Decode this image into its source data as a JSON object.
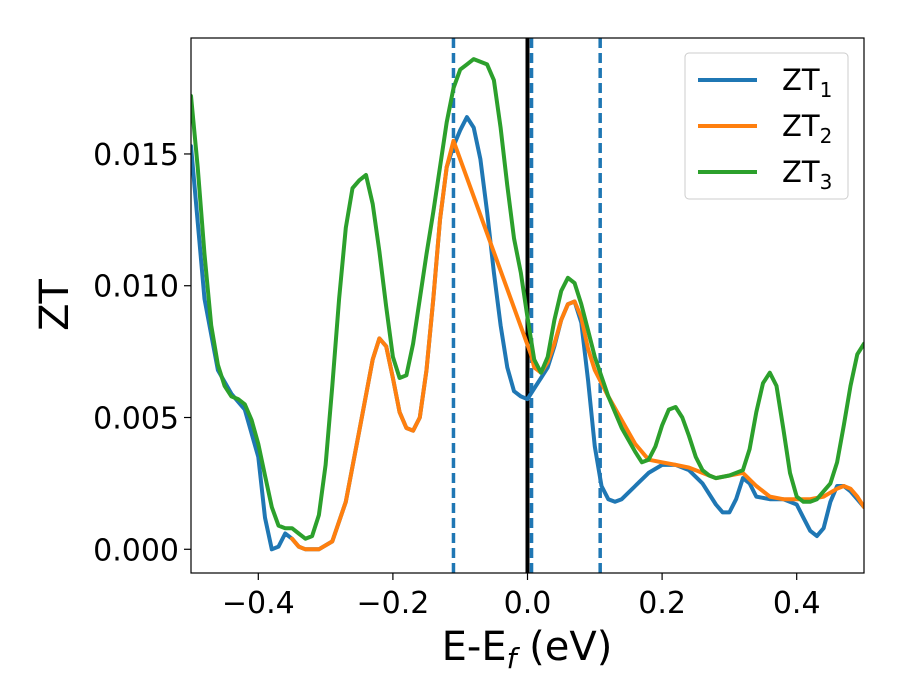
{
  "chart_data": {
    "type": "line",
    "title": "",
    "xlabel": {
      "main": "E-E",
      "sub": "f",
      "suffix": " (eV)"
    },
    "ylabel": "ZT",
    "xlim": [
      -0.5,
      0.5
    ],
    "ylim": [
      -0.0009,
      0.0194
    ],
    "x_ticks": [
      -0.4,
      -0.2,
      0.0,
      0.2,
      0.4
    ],
    "x_tick_labels": [
      "−0.4",
      "−0.2",
      "0.0",
      "0.2",
      "0.4"
    ],
    "y_ticks": [
      0.0,
      0.005,
      0.01,
      0.015
    ],
    "y_tick_labels": [
      "0.000",
      "0.005",
      "0.010",
      "0.015"
    ],
    "grid": false,
    "legend_position": "top-right",
    "vertical_lines": [
      {
        "x": -0.11,
        "style": "dashed",
        "color": "#1f77b4"
      },
      {
        "x": 0.0,
        "style": "solid",
        "color": "#000000"
      },
      {
        "x": 0.006,
        "style": "dashed",
        "color": "#1f77b4"
      },
      {
        "x": 0.108,
        "style": "dashed",
        "color": "#1f77b4"
      }
    ],
    "series": [
      {
        "name": "ZT",
        "sub": "1",
        "color": "#1f77b4",
        "points": [
          [
            -0.5,
            0.0153
          ],
          [
            -0.48,
            0.0095
          ],
          [
            -0.46,
            0.0068
          ],
          [
            -0.44,
            0.0059
          ],
          [
            -0.42,
            0.0053
          ],
          [
            -0.4,
            0.0035
          ],
          [
            -0.39,
            0.0012
          ],
          [
            -0.38,
            0.0
          ],
          [
            -0.37,
            0.0001
          ],
          [
            -0.36,
            0.0006
          ],
          [
            -0.35,
            0.0004
          ],
          [
            -0.34,
            0.0001
          ],
          [
            -0.33,
            0.0
          ],
          [
            -0.31,
            0.0
          ],
          [
            -0.29,
            0.0003
          ],
          [
            -0.27,
            0.0018
          ],
          [
            -0.25,
            0.0045
          ],
          [
            -0.23,
            0.0072
          ],
          [
            -0.22,
            0.008
          ],
          [
            -0.21,
            0.0077
          ],
          [
            -0.2,
            0.0065
          ],
          [
            -0.19,
            0.0052
          ],
          [
            -0.18,
            0.0046
          ],
          [
            -0.17,
            0.0045
          ],
          [
            -0.16,
            0.005
          ],
          [
            -0.15,
            0.0068
          ],
          [
            -0.14,
            0.0095
          ],
          [
            -0.13,
            0.0125
          ],
          [
            -0.12,
            0.0145
          ],
          [
            -0.11,
            0.0153
          ],
          [
            -0.1,
            0.0159
          ],
          [
            -0.09,
            0.0164
          ],
          [
            -0.08,
            0.016
          ],
          [
            -0.07,
            0.0148
          ],
          [
            -0.06,
            0.0128
          ],
          [
            -0.05,
            0.0105
          ],
          [
            -0.04,
            0.0085
          ],
          [
            -0.03,
            0.0069
          ],
          [
            -0.02,
            0.006
          ],
          [
            -0.01,
            0.0058
          ],
          [
            0.0,
            0.0057
          ],
          [
            0.01,
            0.0061
          ],
          [
            0.02,
            0.0065
          ],
          [
            0.03,
            0.0069
          ],
          [
            0.04,
            0.0077
          ],
          [
            0.05,
            0.0087
          ],
          [
            0.06,
            0.0093
          ],
          [
            0.07,
            0.0094
          ],
          [
            0.08,
            0.0086
          ],
          [
            0.09,
            0.0064
          ],
          [
            0.1,
            0.0039
          ],
          [
            0.11,
            0.0024
          ],
          [
            0.12,
            0.0019
          ],
          [
            0.13,
            0.0018
          ],
          [
            0.14,
            0.0019
          ],
          [
            0.16,
            0.0024
          ],
          [
            0.18,
            0.0029
          ],
          [
            0.2,
            0.0032
          ],
          [
            0.22,
            0.0032
          ],
          [
            0.24,
            0.003
          ],
          [
            0.26,
            0.0025
          ],
          [
            0.28,
            0.0017
          ],
          [
            0.29,
            0.0014
          ],
          [
            0.3,
            0.0014
          ],
          [
            0.31,
            0.0019
          ],
          [
            0.32,
            0.0027
          ],
          [
            0.33,
            0.0025
          ],
          [
            0.34,
            0.002
          ],
          [
            0.36,
            0.0019
          ],
          [
            0.38,
            0.0019
          ],
          [
            0.4,
            0.0017
          ],
          [
            0.41,
            0.0012
          ],
          [
            0.42,
            0.0007
          ],
          [
            0.43,
            0.0005
          ],
          [
            0.44,
            0.0008
          ],
          [
            0.45,
            0.0018
          ],
          [
            0.46,
            0.0024
          ],
          [
            0.47,
            0.0024
          ],
          [
            0.48,
            0.0022
          ],
          [
            0.49,
            0.0019
          ],
          [
            0.5,
            0.0016
          ]
        ]
      },
      {
        "name": "ZT",
        "sub": "2",
        "color": "#ff7f0e",
        "points": [
          [
            -0.35,
            0.0004
          ],
          [
            -0.34,
            0.0001
          ],
          [
            -0.33,
            0.0
          ],
          [
            -0.31,
            0.0
          ],
          [
            -0.29,
            0.0003
          ],
          [
            -0.27,
            0.0018
          ],
          [
            -0.25,
            0.0045
          ],
          [
            -0.23,
            0.0072
          ],
          [
            -0.22,
            0.008
          ],
          [
            -0.21,
            0.0077
          ],
          [
            -0.2,
            0.0065
          ],
          [
            -0.19,
            0.0052
          ],
          [
            -0.18,
            0.0046
          ],
          [
            -0.17,
            0.0045
          ],
          [
            -0.16,
            0.005
          ],
          [
            -0.15,
            0.0068
          ],
          [
            -0.14,
            0.0095
          ],
          [
            -0.13,
            0.0125
          ],
          [
            -0.12,
            0.0145
          ],
          [
            -0.11,
            0.0155
          ],
          [
            0.005,
            0.0074
          ],
          [
            0.01,
            0.0069
          ],
          [
            0.02,
            0.0067
          ],
          [
            0.03,
            0.0071
          ],
          [
            0.04,
            0.0078
          ],
          [
            0.05,
            0.0087
          ],
          [
            0.06,
            0.0093
          ],
          [
            0.07,
            0.0094
          ],
          [
            0.08,
            0.0088
          ],
          [
            0.09,
            0.0076
          ],
          [
            0.1,
            0.0068
          ],
          [
            0.12,
            0.0058
          ],
          [
            0.14,
            0.0049
          ],
          [
            0.16,
            0.004
          ],
          [
            0.18,
            0.0034
          ],
          [
            0.2,
            0.0033
          ],
          [
            0.22,
            0.0032
          ],
          [
            0.24,
            0.0031
          ],
          [
            0.26,
            0.0029
          ],
          [
            0.28,
            0.0027
          ],
          [
            0.3,
            0.0028
          ],
          [
            0.32,
            0.0029
          ],
          [
            0.34,
            0.0024
          ],
          [
            0.36,
            0.002
          ],
          [
            0.38,
            0.0019
          ],
          [
            0.4,
            0.0019
          ],
          [
            0.42,
            0.0019
          ],
          [
            0.44,
            0.002
          ],
          [
            0.46,
            0.0023
          ],
          [
            0.47,
            0.0024
          ],
          [
            0.48,
            0.0023
          ],
          [
            0.49,
            0.002
          ],
          [
            0.5,
            0.0016
          ]
        ]
      },
      {
        "name": "ZT",
        "sub": "3",
        "color": "#2ca02c",
        "points": [
          [
            -0.5,
            0.0172
          ],
          [
            -0.49,
            0.0145
          ],
          [
            -0.48,
            0.0112
          ],
          [
            -0.47,
            0.0085
          ],
          [
            -0.46,
            0.007
          ],
          [
            -0.45,
            0.0062
          ],
          [
            -0.44,
            0.0058
          ],
          [
            -0.43,
            0.0057
          ],
          [
            -0.42,
            0.0055
          ],
          [
            -0.41,
            0.0049
          ],
          [
            -0.4,
            0.004
          ],
          [
            -0.39,
            0.0028
          ],
          [
            -0.38,
            0.0016
          ],
          [
            -0.37,
            0.0009
          ],
          [
            -0.36,
            0.0008
          ],
          [
            -0.35,
            0.0008
          ],
          [
            -0.34,
            0.0006
          ],
          [
            -0.33,
            0.0004
          ],
          [
            -0.32,
            0.0005
          ],
          [
            -0.31,
            0.0013
          ],
          [
            -0.3,
            0.0032
          ],
          [
            -0.29,
            0.0062
          ],
          [
            -0.28,
            0.0095
          ],
          [
            -0.27,
            0.0122
          ],
          [
            -0.26,
            0.0137
          ],
          [
            -0.25,
            0.014
          ],
          [
            -0.24,
            0.0142
          ],
          [
            -0.23,
            0.0131
          ],
          [
            -0.22,
            0.0113
          ],
          [
            -0.21,
            0.0092
          ],
          [
            -0.2,
            0.0073
          ],
          [
            -0.19,
            0.0065
          ],
          [
            -0.18,
            0.0066
          ],
          [
            -0.17,
            0.0078
          ],
          [
            -0.16,
            0.0095
          ],
          [
            -0.15,
            0.0112
          ],
          [
            -0.14,
            0.0128
          ],
          [
            -0.13,
            0.0145
          ],
          [
            -0.12,
            0.0162
          ],
          [
            -0.11,
            0.0175
          ],
          [
            -0.1,
            0.0182
          ],
          [
            -0.09,
            0.0184
          ],
          [
            -0.08,
            0.0186
          ],
          [
            -0.07,
            0.0185
          ],
          [
            -0.06,
            0.0184
          ],
          [
            -0.05,
            0.0178
          ],
          [
            -0.04,
            0.016
          ],
          [
            -0.03,
            0.0138
          ],
          [
            -0.02,
            0.0118
          ],
          [
            -0.01,
            0.0105
          ],
          [
            0.0,
            0.0088
          ],
          [
            0.01,
            0.0072
          ],
          [
            0.02,
            0.0067
          ],
          [
            0.03,
            0.0073
          ],
          [
            0.04,
            0.0087
          ],
          [
            0.05,
            0.0098
          ],
          [
            0.06,
            0.0103
          ],
          [
            0.07,
            0.0101
          ],
          [
            0.08,
            0.0093
          ],
          [
            0.09,
            0.0083
          ],
          [
            0.1,
            0.0073
          ],
          [
            0.12,
            0.0058
          ],
          [
            0.14,
            0.0046
          ],
          [
            0.16,
            0.0037
          ],
          [
            0.17,
            0.0033
          ],
          [
            0.18,
            0.0034
          ],
          [
            0.19,
            0.0039
          ],
          [
            0.2,
            0.0047
          ],
          [
            0.21,
            0.0053
          ],
          [
            0.22,
            0.0054
          ],
          [
            0.23,
            0.005
          ],
          [
            0.24,
            0.0043
          ],
          [
            0.25,
            0.0035
          ],
          [
            0.26,
            0.003
          ],
          [
            0.27,
            0.0028
          ],
          [
            0.28,
            0.0027
          ],
          [
            0.3,
            0.0028
          ],
          [
            0.32,
            0.003
          ],
          [
            0.33,
            0.0038
          ],
          [
            0.34,
            0.0052
          ],
          [
            0.35,
            0.0063
          ],
          [
            0.36,
            0.0067
          ],
          [
            0.37,
            0.0062
          ],
          [
            0.38,
            0.0046
          ],
          [
            0.39,
            0.0029
          ],
          [
            0.4,
            0.002
          ],
          [
            0.41,
            0.0018
          ],
          [
            0.42,
            0.0018
          ],
          [
            0.43,
            0.0019
          ],
          [
            0.44,
            0.0022
          ],
          [
            0.45,
            0.0025
          ],
          [
            0.46,
            0.0033
          ],
          [
            0.47,
            0.0047
          ],
          [
            0.48,
            0.0062
          ],
          [
            0.49,
            0.0074
          ],
          [
            0.5,
            0.0078
          ]
        ]
      }
    ]
  }
}
